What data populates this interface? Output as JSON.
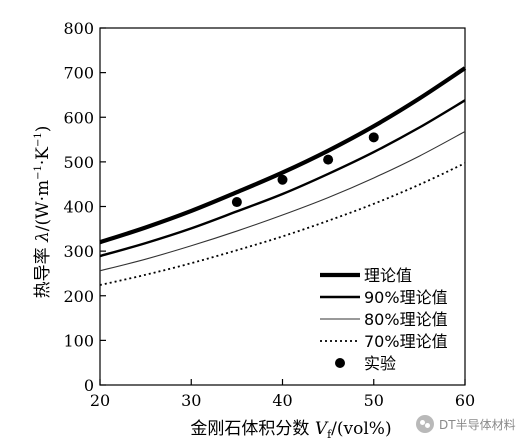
{
  "chart_data": {
    "type": "line",
    "xlabel_prefix": "金刚石体积分数 ",
    "xlabel_var": "V",
    "xlabel_sub": "f",
    "xlabel_suffix": "/(vol%)",
    "ylabel_prefix": "热导率 ",
    "ylabel_var": "λ",
    "ylabel_suffix": "/(W·m",
    "ylabel_sup1": "−1",
    "ylabel_mid": "·K",
    "ylabel_sup2": "−1",
    "ylabel_end": ")",
    "xlim": [
      20,
      60
    ],
    "ylim": [
      0,
      800
    ],
    "x_ticks": [
      20,
      30,
      40,
      50,
      60
    ],
    "y_ticks": [
      0,
      100,
      200,
      300,
      400,
      500,
      600,
      700,
      800
    ],
    "grid": false,
    "legend_position": "bottom-right",
    "series": [
      {
        "name": "理论值",
        "style": "thick-solid",
        "x": [
          20,
          25,
          30,
          35,
          40,
          45,
          50,
          55,
          60
        ],
        "y": [
          320,
          353,
          390,
          432,
          476,
          525,
          580,
          642,
          710
        ]
      },
      {
        "name": "90%理论值",
        "style": "medium-solid",
        "x": [
          20,
          25,
          30,
          35,
          40,
          45,
          50,
          55,
          60
        ],
        "y": [
          289,
          318,
          351,
          389,
          428,
          473,
          522,
          577,
          638
        ]
      },
      {
        "name": "80%理论值",
        "style": "thin-solid",
        "x": [
          20,
          25,
          30,
          35,
          40,
          45,
          50,
          55,
          60
        ],
        "y": [
          256,
          282,
          312,
          345,
          381,
          420,
          464,
          513,
          568
        ]
      },
      {
        "name": "70%理论值",
        "style": "dotted",
        "x": [
          20,
          25,
          30,
          35,
          40,
          45,
          50,
          55,
          60
        ],
        "y": [
          224,
          247,
          273,
          302,
          333,
          368,
          406,
          449,
          497
        ]
      },
      {
        "name": "实验",
        "style": "marker",
        "x": [
          35,
          40,
          45,
          50
        ],
        "y": [
          410,
          460,
          505,
          555
        ]
      }
    ]
  },
  "watermark": {
    "text": "DT半导体材料"
  }
}
